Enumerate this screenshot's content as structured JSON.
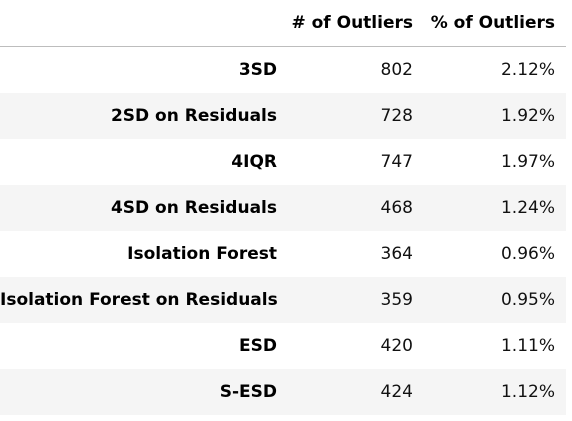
{
  "table": {
    "columns": [
      "",
      "# of Outliers",
      "% of Outliers"
    ],
    "rows": [
      {
        "method": "3SD",
        "count": "802",
        "percent": "2.12%"
      },
      {
        "method": "2SD on Residuals",
        "count": "728",
        "percent": "1.92%"
      },
      {
        "method": "4IQR",
        "count": "747",
        "percent": "1.97%"
      },
      {
        "method": "4SD on Residuals",
        "count": "468",
        "percent": "1.24%"
      },
      {
        "method": "Isolation Forest",
        "count": "364",
        "percent": "0.96%"
      },
      {
        "method": "Isolation Forest on Residuals",
        "count": "359",
        "percent": "0.95%"
      },
      {
        "method": "ESD",
        "count": "420",
        "percent": "1.11%"
      },
      {
        "method": "S-ESD",
        "count": "424",
        "percent": "1.12%"
      }
    ]
  }
}
